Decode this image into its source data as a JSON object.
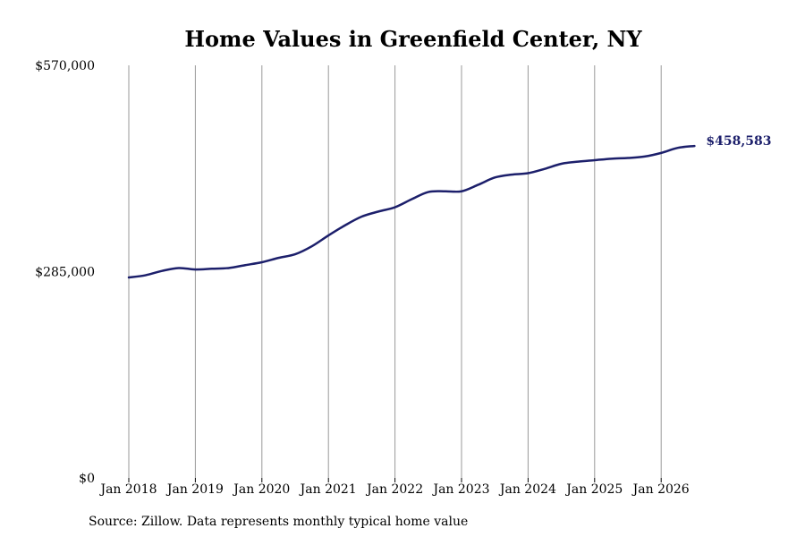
{
  "chart_data": {
    "type": "line",
    "title": "Home Values in Greenfield Center, NY",
    "ylim": [
      0,
      570000
    ],
    "y_ticks": [
      {
        "value": 0,
        "label": "$0"
      },
      {
        "value": 285000,
        "label": "$285,000"
      },
      {
        "value": 570000,
        "label": "$570,000"
      }
    ],
    "x_ticks": [
      {
        "date": "2018-01",
        "label": "Jan 2018"
      },
      {
        "date": "2019-01",
        "label": "Jan 2019"
      },
      {
        "date": "2020-01",
        "label": "Jan 2020"
      },
      {
        "date": "2021-01",
        "label": "Jan 2021"
      },
      {
        "date": "2022-01",
        "label": "Jan 2022"
      },
      {
        "date": "2023-01",
        "label": "Jan 2023"
      },
      {
        "date": "2024-01",
        "label": "Jan 2024"
      },
      {
        "date": "2025-01",
        "label": "Jan 2025"
      },
      {
        "date": "2026-01",
        "label": "Jan 2026"
      }
    ],
    "x_range": [
      "2018-01",
      "2026-07"
    ],
    "grid": "vertical",
    "line_color": "#1c1f6b",
    "series": [
      {
        "x": [
          "2018-01",
          "2018-04",
          "2018-07",
          "2018-10",
          "2019-01",
          "2019-04",
          "2019-07",
          "2019-10",
          "2020-01",
          "2020-04",
          "2020-07",
          "2020-10",
          "2021-01",
          "2021-04",
          "2021-07",
          "2021-10",
          "2022-01",
          "2022-04",
          "2022-07",
          "2022-10",
          "2023-01",
          "2023-04",
          "2023-07",
          "2023-10",
          "2024-01",
          "2024-04",
          "2024-07",
          "2024-10",
          "2025-01",
          "2025-04",
          "2025-07",
          "2025-10",
          "2026-01",
          "2026-04",
          "2026-07"
        ],
        "values": [
          277000,
          280000,
          286000,
          290000,
          288000,
          289000,
          290000,
          294000,
          298000,
          304000,
          309000,
          320000,
          335000,
          349000,
          361000,
          368000,
          374000,
          385000,
          395000,
          396000,
          396000,
          405000,
          415000,
          419000,
          421000,
          427000,
          434000,
          437000,
          439000,
          441000,
          442000,
          444000,
          449000,
          456000,
          458583
        ]
      }
    ],
    "end_label": "$458,583",
    "source": "Source: Zillow. Data represents monthly typical home value"
  }
}
